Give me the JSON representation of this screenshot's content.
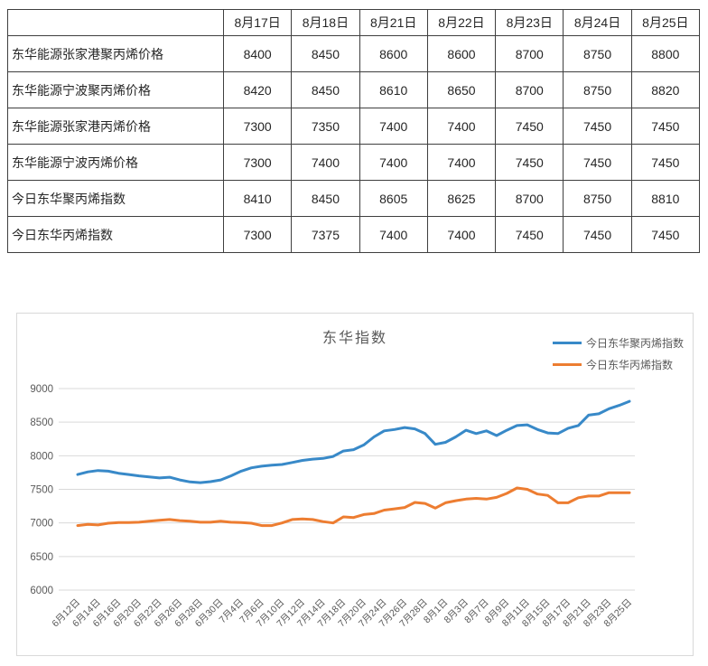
{
  "price_table": {
    "columns": [
      "",
      "8月17日",
      "8月18日",
      "8月21日",
      "8月22日",
      "8月23日",
      "8月24日",
      "8月25日"
    ],
    "rows": [
      {
        "label": "东华能源张家港聚丙烯价格",
        "values": [
          8400,
          8450,
          8600,
          8600,
          8700,
          8750,
          8800
        ]
      },
      {
        "label": "东华能源宁波聚丙烯价格",
        "values": [
          8420,
          8450,
          8610,
          8650,
          8700,
          8750,
          8820
        ]
      },
      {
        "label": "东华能源张家港丙烯价格",
        "values": [
          7300,
          7350,
          7400,
          7400,
          7450,
          7450,
          7450
        ]
      },
      {
        "label": "东华能源宁波丙烯价格",
        "values": [
          7300,
          7400,
          7400,
          7400,
          7450,
          7450,
          7450
        ]
      },
      {
        "label": "今日东华聚丙烯指数",
        "values": [
          8410,
          8450,
          8605,
          8625,
          8700,
          8750,
          8810
        ]
      },
      {
        "label": "今日东华丙烯指数",
        "values": [
          7300,
          7375,
          7400,
          7400,
          7450,
          7450,
          7450
        ]
      }
    ]
  },
  "chart_data": {
    "type": "line",
    "title": "东华指数",
    "x": [
      "6月12日",
      "6月13日",
      "6月14日",
      "6月15日",
      "6月16日",
      "6月19日",
      "6月20日",
      "6月21日",
      "6月22日",
      "6月23日",
      "6月26日",
      "6月27日",
      "6月28日",
      "6月29日",
      "6月30日",
      "7月3日",
      "7月4日",
      "7月5日",
      "7月6日",
      "7月7日",
      "7月10日",
      "7月11日",
      "7月12日",
      "7月13日",
      "7月14日",
      "7月17日",
      "7月18日",
      "7月19日",
      "7月20日",
      "7月21日",
      "7月24日",
      "7月25日",
      "7月26日",
      "7月27日",
      "7月28日",
      "7月31日",
      "8月1日",
      "8月2日",
      "8月3日",
      "8月4日",
      "8月7日",
      "8月8日",
      "8月9日",
      "8月10日",
      "8月11日",
      "8月14日",
      "8月15日",
      "8月16日",
      "8月17日",
      "8月18日",
      "8月21日",
      "8月22日",
      "8月23日",
      "8月24日",
      "8月25日"
    ],
    "x_label_every": 2,
    "series": [
      {
        "name": "今日东华聚丙烯指数",
        "color": "#3889c8",
        "values": [
          7720,
          7760,
          7780,
          7770,
          7740,
          7720,
          7700,
          7685,
          7670,
          7680,
          7640,
          7610,
          7600,
          7615,
          7640,
          7700,
          7770,
          7820,
          7845,
          7860,
          7870,
          7900,
          7930,
          7950,
          7960,
          7990,
          8070,
          8090,
          8160,
          8280,
          8370,
          8390,
          8420,
          8400,
          8330,
          8170,
          8200,
          8280,
          8380,
          8330,
          8370,
          8300,
          8380,
          8450,
          8460,
          8390,
          8340,
          8330,
          8410,
          8450,
          8605,
          8625,
          8700,
          8750,
          8810
        ]
      },
      {
        "name": "今日东华丙烯指数",
        "color": "#ed7d31",
        "values": [
          6960,
          6980,
          6970,
          6995,
          7005,
          7005,
          7010,
          7025,
          7040,
          7050,
          7035,
          7025,
          7010,
          7010,
          7025,
          7010,
          7005,
          6995,
          6960,
          6960,
          7000,
          7050,
          7060,
          7050,
          7020,
          7000,
          7090,
          7080,
          7125,
          7140,
          7190,
          7210,
          7230,
          7305,
          7290,
          7220,
          7300,
          7330,
          7355,
          7365,
          7355,
          7380,
          7440,
          7520,
          7500,
          7430,
          7410,
          7300,
          7300,
          7375,
          7400,
          7400,
          7450,
          7450,
          7450
        ]
      }
    ],
    "ylim": [
      6000,
      9000
    ],
    "yticks": [
      9000,
      8500,
      8000,
      7500,
      7000,
      6500,
      6000
    ],
    "grid": "horizontal",
    "legend_position": "top-right",
    "axis_color": "#595959",
    "grid_color": "#d9d9d9"
  }
}
